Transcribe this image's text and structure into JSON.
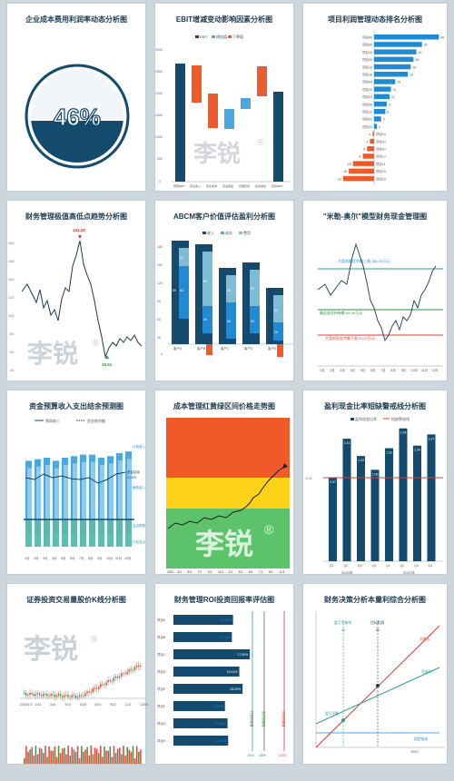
{
  "watermark": "李锐",
  "watermark_mark": "®",
  "colors": {
    "navy": "#134a6e",
    "blue": "#1f8ad6",
    "sky": "#4aa7e0",
    "teal": "#2a9d8f",
    "orange": "#f05a28",
    "red": "#e03a2f",
    "green": "#2f8f3e",
    "lightblue": "#8ec9ee",
    "yellow": "#ffd21a",
    "light": "#5cc36b"
  },
  "cards": {
    "c1": {
      "title": "企业成本费用利润率动态分析图",
      "chart_data": {
        "type": "gauge",
        "value": 46,
        "label": "46%"
      }
    },
    "c2": {
      "title": "EBIT增减变动影响因素分析图",
      "chart_data": {
        "type": "bar",
        "legend": [
          "EBIT",
          "增加值",
          "下降值"
        ],
        "categories": [
          "预算EBIT",
          "营业收入",
          "营业成本",
          "营业税金",
          "管理费用",
          "销售费用",
          "投资收益",
          "实际EBIT"
        ],
        "ylim": [
          0,
          3500
        ]
      }
    },
    "c3": {
      "title": "项目利润管理动态排名分析图",
      "chart_data": {
        "type": "bar",
        "orientation": "horizontal",
        "categories": [
          "项目06",
          "项目05",
          "项目15",
          "项目09",
          "项目16",
          "项目18",
          "项目04",
          "项目10",
          "项目03",
          "项目08",
          "项目12",
          "项目02",
          "项目13",
          "项目14",
          "项目01",
          "项目07",
          "项目17",
          "项目11",
          "项目20",
          "项目19"
        ],
        "values": [
          46,
          34,
          30,
          28,
          26,
          24,
          15,
          12,
          11,
          9,
          8,
          5,
          2,
          -1,
          -3,
          -5,
          -8,
          -15,
          -18,
          -22
        ]
      }
    },
    "c4": {
      "title": "财务管理极值高低点趋势分析图",
      "chart_data": {
        "type": "line",
        "annotations": [
          "162.39",
          "19.51"
        ],
        "ylabels": [
          "40",
          "60",
          "80",
          "100",
          "120",
          "140",
          "160",
          "180"
        ]
      }
    },
    "c5": {
      "title": "ABCM客户价值评估盈利分析图",
      "chart_data": {
        "type": "bar",
        "legend": [
          "收入",
          "成本",
          "费用"
        ],
        "categories": [
          "客户A",
          "客户B",
          "客户C",
          "客户D",
          "客户E",
          "客户F"
        ],
        "series": [
          {
            "name": "收入",
            "values": [
              170,
              155,
              150,
              150,
              115,
              110
            ]
          }
        ]
      }
    },
    "c6": {
      "title": "\"米勒-奥尔\"模型财务现金管理图",
      "chart_data": {
        "type": "line",
        "annotations": [
          "方案的最优余额上限 180.25万元",
          "最佳现金持有额 69.49万元",
          "方案的现金余额下限 20.97万元"
        ],
        "xlabels": [
          "1月",
          "2月",
          "3月",
          "4月",
          "5月",
          "6月",
          "7月",
          "8月",
          "9月",
          "10月",
          "11月",
          "12月"
        ]
      }
    },
    "c7": {
      "title": "资金预算收入支出结余预测图",
      "chart_data": {
        "type": "bar",
        "legend": [
          "预测收入",
          "资金结余额"
        ],
        "categories": [
          "1月",
          "2月",
          "3月",
          "4月",
          "5月",
          "6月",
          "7月",
          "8月",
          "9月",
          "10月",
          "11月",
          "12月"
        ],
        "series": [
          {
            "name": "预测收入",
            "values": [
              38,
              39,
              40,
              38,
              40,
              41,
              42,
              42,
              40,
              41,
              43,
              44
            ]
          }
        ],
        "annotations": [
          "计划收入",
          "资金结余",
          "21.8万",
          "最低收入",
          "支出预算",
          "计划支出"
        ]
      }
    },
    "c8": {
      "title": "成本管理红黄绿区间价格走势图",
      "chart_data": {
        "type": "line",
        "xlabels": [
          "2021",
          "3/1",
          "5/1",
          "7/1",
          "9/1",
          "11/1",
          "1/1",
          "3/1",
          "5/1",
          "7/1",
          "9/1",
          "11/1"
        ]
      }
    },
    "c9": {
      "title": "盈利现金比率短缺警戒线分析图",
      "chart_data": {
        "type": "bar",
        "legend": [
          "盈利现金比率",
          "短缺警戒线"
        ],
        "categories": [
          "Q1",
          "Q2",
          "Q3",
          "Q4",
          "Q1",
          "Q2",
          "Q3",
          "Q4"
        ],
        "values": [
          0.97,
          1.42,
          1.22,
          1.06,
          1.31,
          1.54,
          1.34,
          1.47
        ],
        "line": [
          1.02
        ],
        "annotations": [
          "2020年",
          "2021年"
        ]
      }
    },
    "c10": {
      "title": "证券投资交易量股价K线分析图",
      "chart_data": {
        "type": "candlestick",
        "xlabels": [
          "2020/1/2",
          "2/14",
          "3/31",
          "5/13",
          "6/28",
          "8/10",
          "9/22",
          "11/3",
          "12/16"
        ]
      }
    },
    "c11": {
      "title": "财务管理ROI投资回报率评估图",
      "chart_data": {
        "type": "bar",
        "orientation": "horizontal",
        "categories": [
          "项目A",
          "项目B",
          "项目C",
          "项目D",
          "项目E",
          "项目F",
          "项目G",
          "项目H"
        ],
        "values": [
          13.97,
          13.7,
          17.9,
          15.44,
          16.2,
          12.07,
          12.68,
          12.82
        ],
        "labels": [
          "13.97%",
          "13.70%",
          "17.90%",
          "15.44%",
          "16.20%",
          "12.07%",
          "12.68%",
          "12.82%"
        ],
        "annotations": [
          "15%",
          "18%",
          "23%",
          "行业标准值",
          "良好回报值",
          "优秀回报值"
        ]
      }
    },
    "c12": {
      "title": "财务决策分析本量利综合分析图",
      "chart_data": {
        "type": "line",
        "annotations": [
          "盈亏平衡线",
          "目标利润",
          "35",
          "60",
          "总收入",
          "总成本",
          "固定成本",
          "1000",
          "盈亏平衡"
        ]
      }
    }
  }
}
